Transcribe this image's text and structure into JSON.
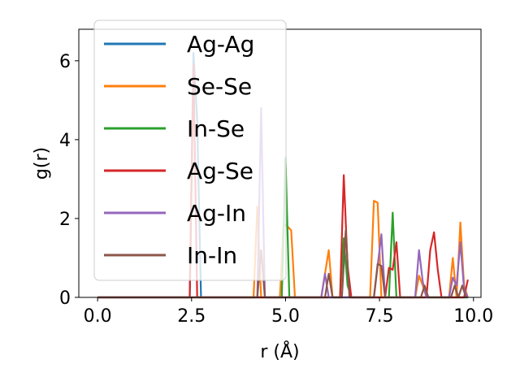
{
  "chart_data": {
    "type": "line",
    "xlabel": "r (Å)",
    "ylabel": "g(r)",
    "xlim": [
      -0.5,
      10.2
    ],
    "ylim": [
      0,
      6.8
    ],
    "xticks": [
      0.0,
      2.5,
      5.0,
      7.5,
      10.0
    ],
    "xtick_labels": [
      "0.0",
      "2.5",
      "5.0",
      "7.5",
      "10.0"
    ],
    "yticks": [
      0,
      2,
      4,
      6
    ],
    "ytick_labels": [
      "0",
      "2",
      "4",
      "6"
    ],
    "legend_position": "upper-left",
    "series": [
      {
        "name": "Ag-Ag",
        "color": "#1f77b4",
        "points": [
          [
            0,
            0
          ],
          [
            2.45,
            0
          ],
          [
            2.55,
            6.2
          ],
          [
            2.65,
            4.5
          ],
          [
            2.75,
            0
          ],
          [
            9.85,
            0
          ]
        ]
      },
      {
        "name": "Se-Se",
        "color": "#ff7f0e",
        "points": [
          [
            0,
            0
          ],
          [
            4.15,
            0
          ],
          [
            4.25,
            2.3
          ],
          [
            4.35,
            0
          ],
          [
            4.85,
            0
          ],
          [
            4.95,
            1.85
          ],
          [
            5.05,
            1.8
          ],
          [
            5.15,
            1.7
          ],
          [
            5.25,
            0
          ],
          [
            5.95,
            0
          ],
          [
            6.05,
            0.6
          ],
          [
            6.15,
            1.2
          ],
          [
            6.25,
            0
          ],
          [
            7.25,
            0
          ],
          [
            7.35,
            2.45
          ],
          [
            7.45,
            2.4
          ],
          [
            7.55,
            0
          ],
          [
            8.45,
            0
          ],
          [
            8.55,
            0.55
          ],
          [
            8.65,
            0.3
          ],
          [
            8.75,
            0
          ],
          [
            9.35,
            0
          ],
          [
            9.45,
            1.0
          ],
          [
            9.55,
            0
          ],
          [
            9.65,
            1.9
          ],
          [
            9.75,
            0.3
          ],
          [
            9.85,
            0
          ]
        ]
      },
      {
        "name": "In-Se",
        "color": "#2ca02c",
        "points": [
          [
            0,
            0
          ],
          [
            4.9,
            0
          ],
          [
            5.0,
            3.55
          ],
          [
            5.1,
            0
          ],
          [
            6.45,
            0
          ],
          [
            6.55,
            1.5
          ],
          [
            6.65,
            0.3
          ],
          [
            6.75,
            0
          ],
          [
            7.75,
            0
          ],
          [
            7.85,
            2.15
          ],
          [
            7.95,
            0
          ],
          [
            9.85,
            0
          ]
        ]
      },
      {
        "name": "Ag-Se",
        "color": "#d62728",
        "points": [
          [
            0,
            0
          ],
          [
            2.45,
            0
          ],
          [
            2.55,
            5.9
          ],
          [
            2.65,
            0
          ],
          [
            6.45,
            0
          ],
          [
            6.55,
            3.1
          ],
          [
            6.65,
            0.8
          ],
          [
            6.75,
            0
          ],
          [
            7.65,
            0
          ],
          [
            7.75,
            0.75
          ],
          [
            7.85,
            0.7
          ],
          [
            7.95,
            1.4
          ],
          [
            8.05,
            0
          ],
          [
            8.75,
            0
          ],
          [
            8.85,
            1.2
          ],
          [
            8.95,
            1.65
          ],
          [
            9.05,
            0.7
          ],
          [
            9.15,
            0
          ],
          [
            9.75,
            0
          ],
          [
            9.85,
            0.45
          ]
        ]
      },
      {
        "name": "Ag-In",
        "color": "#9467bd",
        "points": [
          [
            0,
            0
          ],
          [
            4.25,
            0
          ],
          [
            4.35,
            4.8
          ],
          [
            4.45,
            0
          ],
          [
            5.95,
            0
          ],
          [
            6.05,
            0.6
          ],
          [
            6.15,
            0
          ],
          [
            7.35,
            0
          ],
          [
            7.45,
            0.8
          ],
          [
            7.55,
            1.6
          ],
          [
            7.65,
            0
          ],
          [
            8.45,
            0
          ],
          [
            8.55,
            1.2
          ],
          [
            8.65,
            0.4
          ],
          [
            8.75,
            0
          ],
          [
            9.35,
            0
          ],
          [
            9.45,
            0.5
          ],
          [
            9.55,
            0.3
          ],
          [
            9.65,
            1.4
          ],
          [
            9.75,
            0.2
          ],
          [
            9.85,
            0
          ]
        ]
      },
      {
        "name": "In-In",
        "color": "#8c564b",
        "points": [
          [
            0,
            0
          ],
          [
            4.25,
            0
          ],
          [
            4.35,
            1.2
          ],
          [
            4.45,
            0
          ],
          [
            6.05,
            0
          ],
          [
            6.15,
            0.6
          ],
          [
            6.25,
            0
          ],
          [
            6.5,
            0
          ],
          [
            6.6,
            1.7
          ],
          [
            6.7,
            0
          ],
          [
            7.35,
            0
          ],
          [
            7.45,
            0.85
          ],
          [
            7.55,
            0.8
          ],
          [
            7.65,
            0
          ],
          [
            8.6,
            0
          ],
          [
            8.7,
            0.3
          ],
          [
            8.8,
            0
          ],
          [
            9.4,
            0
          ],
          [
            9.5,
            0.3
          ],
          [
            9.6,
            0
          ],
          [
            9.7,
            0.3
          ],
          [
            9.8,
            0
          ]
        ]
      }
    ]
  }
}
